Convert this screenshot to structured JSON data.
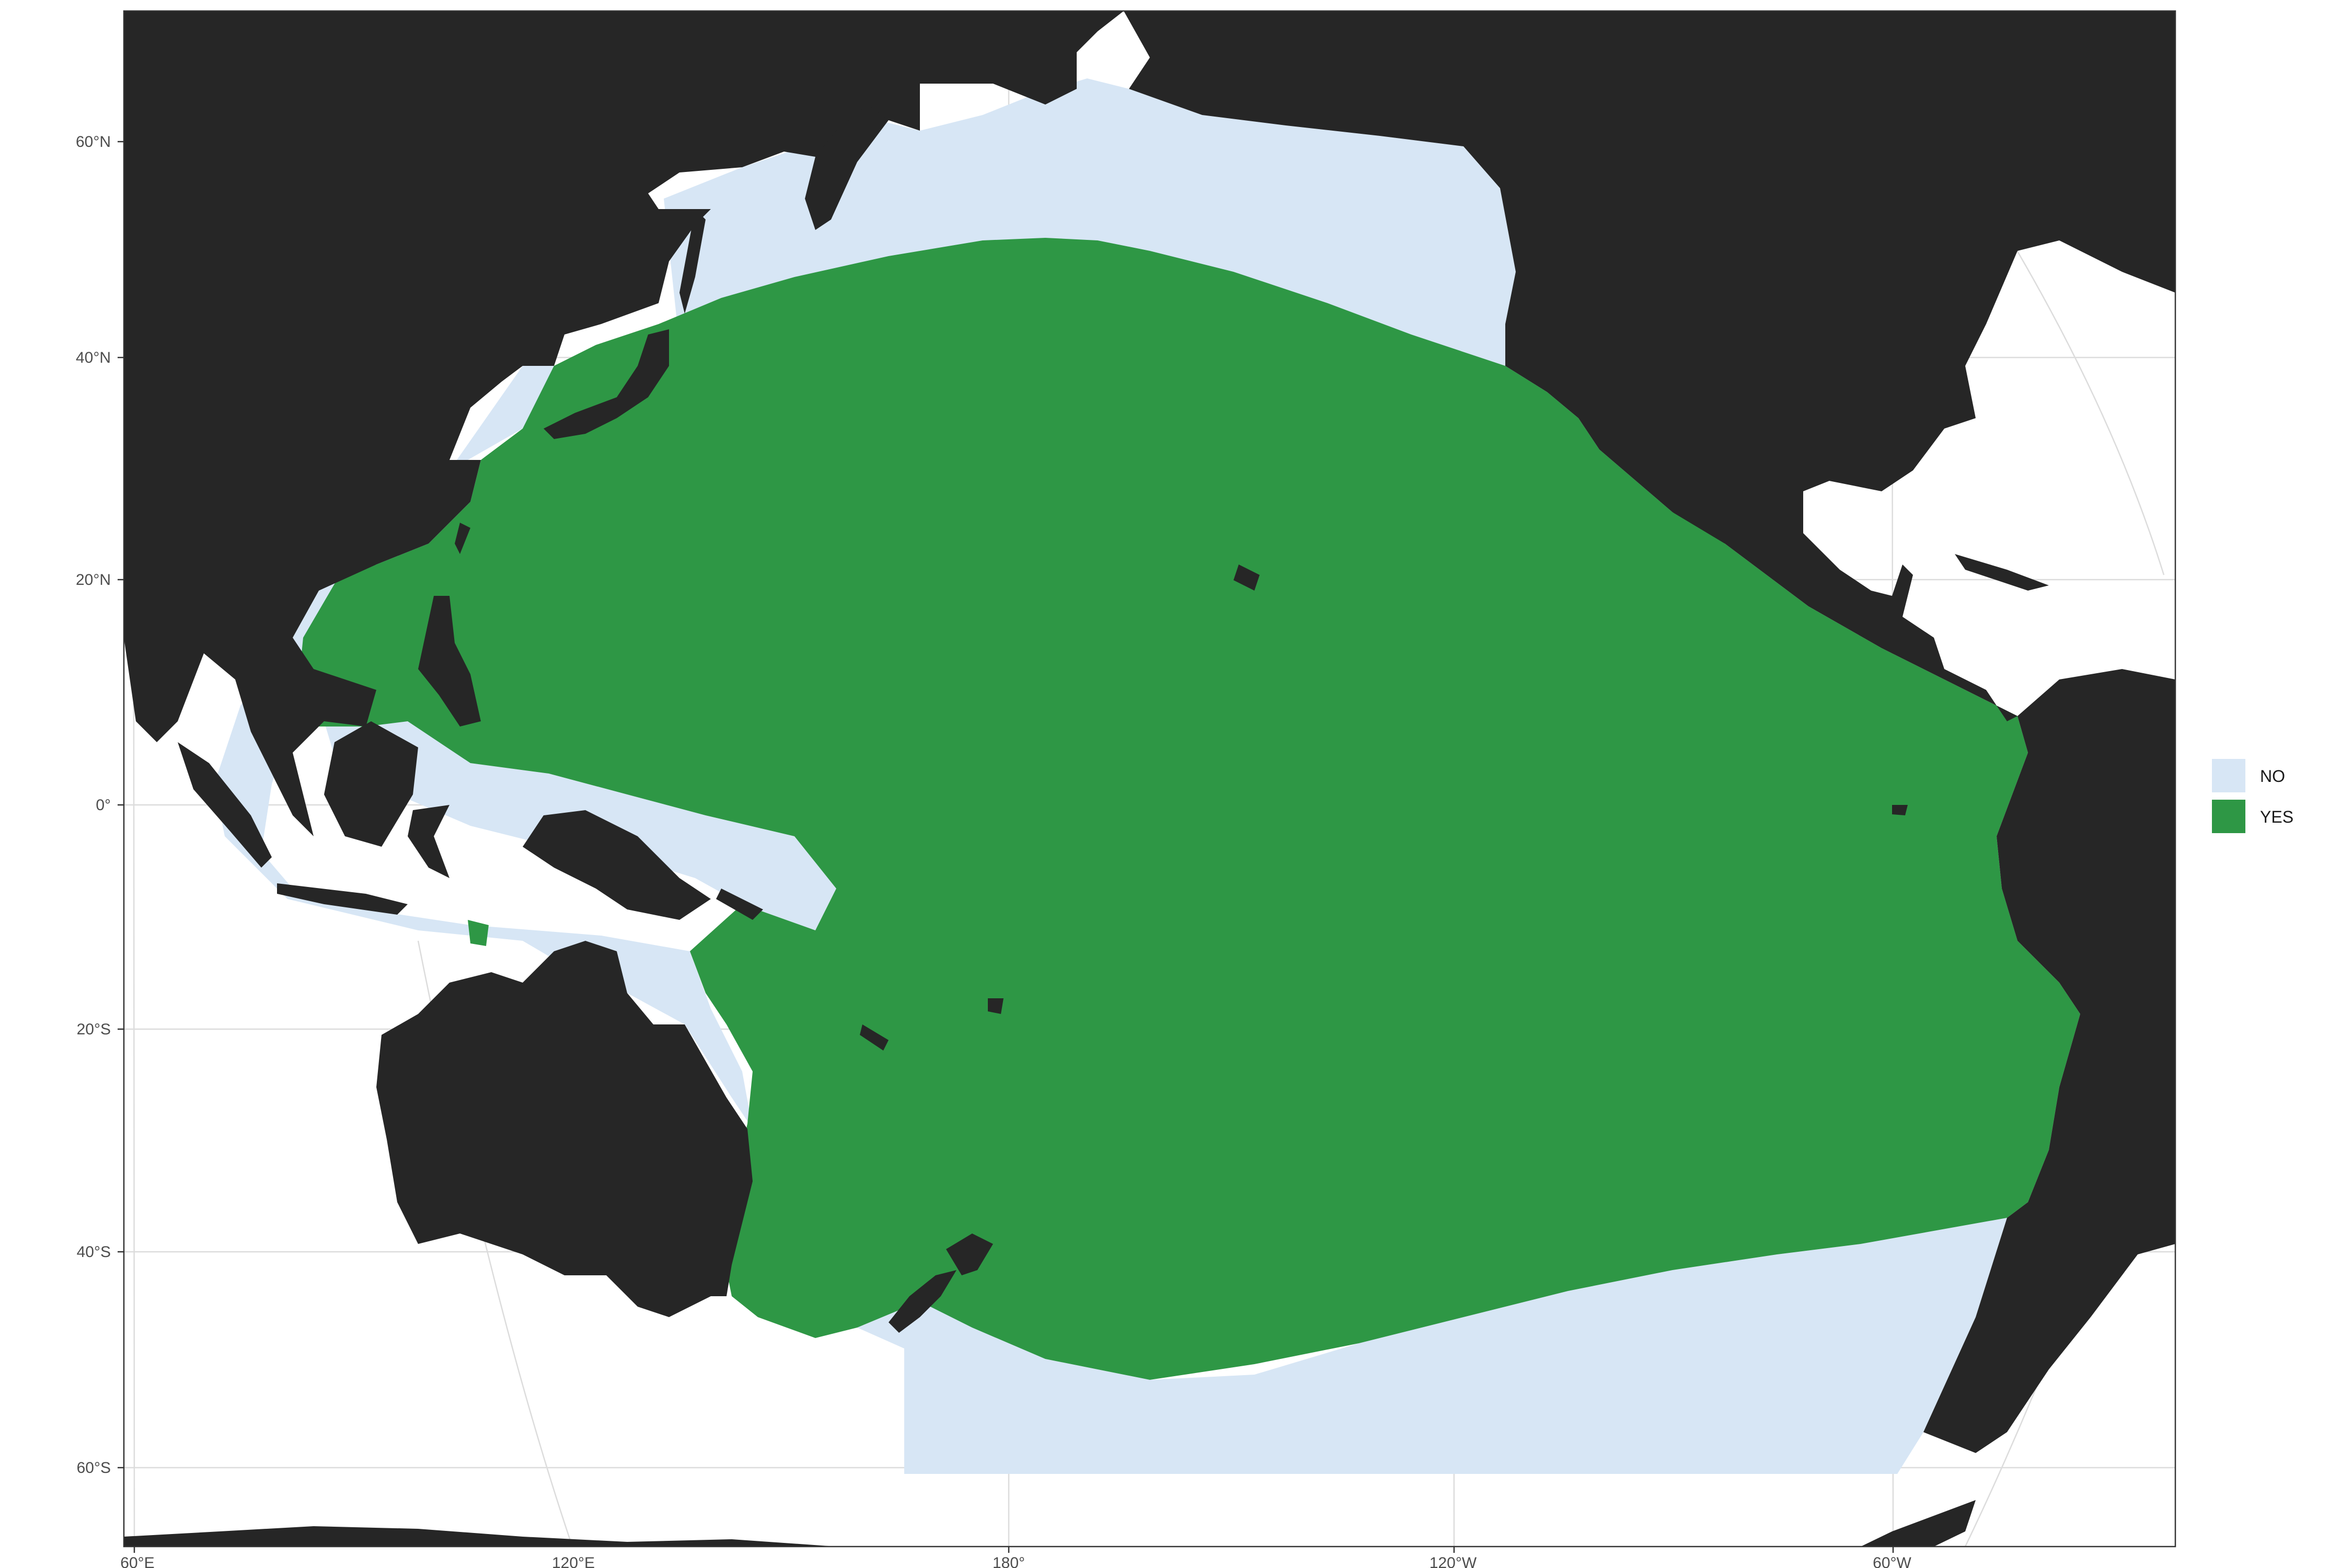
{
  "map": {
    "y_ticks": [
      "60°N",
      "40°N",
      "20°N",
      "0°",
      "20°S",
      "40°S",
      "60°S"
    ],
    "x_ticks": [
      "60°E",
      "120°E",
      "180°",
      "120°W",
      "60°W"
    ],
    "legend": [
      {
        "label": "NO",
        "color": "#d7e6f5"
      },
      {
        "label": "YES",
        "color": "#2e9745"
      }
    ],
    "colors": {
      "land": "#262626",
      "no_area": "#d7e6f5",
      "yes_area": "#2e9745",
      "graticule": "#dcdcdc",
      "panel_border": "#333333"
    }
  }
}
